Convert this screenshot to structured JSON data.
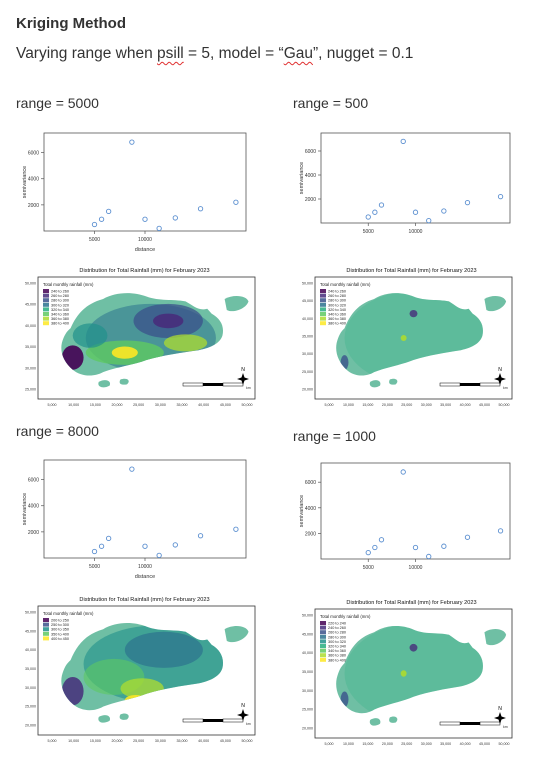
{
  "doc": {
    "heading": "Kriging Method",
    "subtitle_pre": "Varying range when ",
    "subtitle_psill": "psill",
    "subtitle_mid": " = 5, model = “",
    "subtitle_gau": "Gau",
    "subtitle_post": "”, nugget = 0.1"
  },
  "panels": [
    {
      "range_label": "range = 5000",
      "chart_data": {
        "type": "scatter",
        "xlabel": "distance",
        "ylabel": "semivariance",
        "xlim": [
          0,
          20000
        ],
        "ylim": [
          0,
          7500
        ],
        "yticks": [
          2000,
          4000,
          6000
        ],
        "xticks": [
          5000,
          10000
        ],
        "points": [
          [
            5000,
            500
          ],
          [
            5700,
            900
          ],
          [
            6400,
            1500
          ],
          [
            8700,
            6800
          ],
          [
            10000,
            900
          ],
          [
            11400,
            200
          ],
          [
            13000,
            1000
          ],
          [
            15500,
            1700
          ],
          [
            19000,
            2200
          ]
        ]
      },
      "map": {
        "title": "Distribution for Total Rainfall (mm) for February 2023",
        "legend_title": "Total monthly rainfall (mm)",
        "legend_items": [
          "240 to 260",
          "260 to 280",
          "280 to 300",
          "300 to 320",
          "320 to 340",
          "340 to 360",
          "360 to 380",
          "380 to 400"
        ],
        "yticks": [
          "50,000",
          "45,000",
          "40,000",
          "35,000",
          "30,000",
          "25,000"
        ],
        "xticks": [
          "5,000",
          "10,000",
          "15,000",
          "20,000",
          "25,000",
          "30,000",
          "35,000",
          "40,000",
          "45,000",
          "50,000"
        ],
        "scale_label": "km",
        "north": "N"
      }
    },
    {
      "range_label": "range = 500",
      "chart_data": {
        "type": "scatter",
        "xlabel": "",
        "ylabel": "semivariance",
        "xlim": [
          0,
          20000
        ],
        "ylim": [
          0,
          7500
        ],
        "yticks": [
          2000,
          4000,
          6000
        ],
        "xticks": [
          5000,
          10000
        ],
        "points": [
          [
            5000,
            500
          ],
          [
            5700,
            900
          ],
          [
            6400,
            1500
          ],
          [
            8700,
            6800
          ],
          [
            10000,
            900
          ],
          [
            11400,
            200
          ],
          [
            13000,
            1000
          ],
          [
            15500,
            1700
          ],
          [
            19000,
            2200
          ]
        ]
      },
      "map": {
        "title": "Distribution for Total Rainfall (mm) for February 2023",
        "legend_title": "Total monthly rainfall (mm)",
        "legend_items": [
          "240 to 260",
          "260 to 280",
          "280 to 300",
          "300 to 320",
          "320 to 340",
          "340 to 360",
          "360 to 380",
          "380 to 400"
        ],
        "yticks": [
          "50,000",
          "45,000",
          "40,000",
          "35,000",
          "30,000",
          "25,000",
          "20,000"
        ],
        "xticks": [
          "5,000",
          "10,000",
          "15,000",
          "20,000",
          "25,000",
          "30,000",
          "35,000",
          "40,000",
          "45,000",
          "50,000"
        ],
        "scale_label": "km",
        "north": "N"
      }
    },
    {
      "range_label": "range = 8000",
      "chart_data": {
        "type": "scatter",
        "xlabel": "distance",
        "ylabel": "semivariance",
        "xlim": [
          0,
          20000
        ],
        "ylim": [
          0,
          7500
        ],
        "yticks": [
          2000,
          4000,
          6000
        ],
        "xticks": [
          5000,
          10000
        ],
        "points": [
          [
            5000,
            500
          ],
          [
            5700,
            900
          ],
          [
            6400,
            1500
          ],
          [
            8700,
            6800
          ],
          [
            10000,
            900
          ],
          [
            11400,
            200
          ],
          [
            13000,
            1000
          ],
          [
            15500,
            1700
          ],
          [
            19000,
            2200
          ]
        ]
      },
      "map": {
        "title": "Distribution for Total Rainfall (mm) for February 2023",
        "legend_title": "Total monthly rainfall (mm)",
        "legend_items": [
          "200 to 250",
          "250 to 300",
          "300 to 350",
          "350 to 400",
          "400 to 450"
        ],
        "yticks": [
          "50,000",
          "45,000",
          "40,000",
          "35,000",
          "30,000",
          "25,000",
          "20,000"
        ],
        "xticks": [
          "5,000",
          "10,000",
          "15,000",
          "20,000",
          "25,000",
          "30,000",
          "35,000",
          "40,000",
          "45,000",
          "50,000"
        ],
        "scale_label": "km",
        "north": "N"
      }
    },
    {
      "range_label": "range = 1000",
      "chart_data": {
        "type": "scatter",
        "xlabel": "",
        "ylabel": "semivariance",
        "xlim": [
          0,
          20000
        ],
        "ylim": [
          0,
          7500
        ],
        "yticks": [
          2000,
          4000,
          6000
        ],
        "xticks": [
          5000,
          10000
        ],
        "points": [
          [
            5000,
            500
          ],
          [
            5700,
            900
          ],
          [
            6400,
            1500
          ],
          [
            8700,
            6800
          ],
          [
            10000,
            900
          ],
          [
            11400,
            200
          ],
          [
            13000,
            1000
          ],
          [
            15500,
            1700
          ],
          [
            19000,
            2200
          ]
        ]
      },
      "map": {
        "title": "Distribution for Total Rainfall (mm) for February 2023",
        "legend_title": "Total monthly rainfall (mm)",
        "legend_items": [
          "220 to 240",
          "240 to 260",
          "260 to 280",
          "280 to 300",
          "300 to 320",
          "320 to 340",
          "340 to 360",
          "360 to 380",
          "380 to 400"
        ],
        "yticks": [
          "50,000",
          "45,000",
          "40,000",
          "35,000",
          "30,000",
          "25,000",
          "20,000"
        ],
        "xticks": [
          "5,000",
          "10,000",
          "15,000",
          "20,000",
          "25,000",
          "30,000",
          "35,000",
          "40,000",
          "45,000",
          "50,000"
        ],
        "scale_label": "km",
        "north": "N"
      }
    }
  ],
  "colors": {
    "point": "#5b8fd0",
    "land": "#6fbfa4",
    "viridis": [
      "#440154",
      "#472d7b",
      "#3b528b",
      "#2c728e",
      "#21918c",
      "#28ae80",
      "#5ec962",
      "#addc30",
      "#fde725"
    ]
  }
}
